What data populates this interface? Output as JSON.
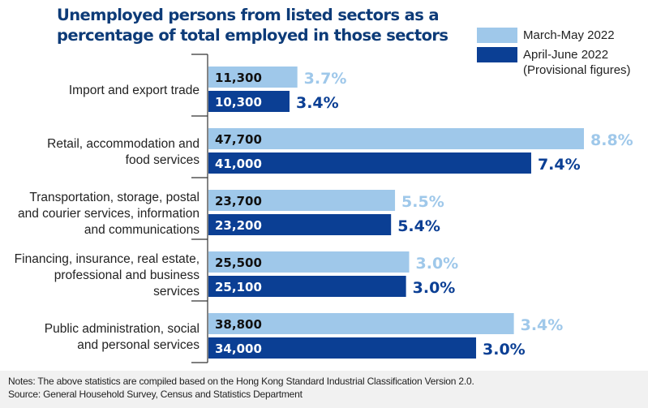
{
  "chart_data": {
    "type": "bar",
    "orientation": "horizontal",
    "title": "Unemployed persons from listed sectors as a percentage of total employed in those sectors",
    "xlabel": "",
    "ylabel": "",
    "xlim": [
      0,
      47700
    ],
    "grid": false,
    "legend_position": "top-right",
    "categories": [
      [
        "Import and export trade"
      ],
      [
        "Retail, accommodation and",
        "food services"
      ],
      [
        "Transportation, storage, postal",
        "and courier services, information",
        "and communications"
      ],
      [
        "Financing, insurance, real estate,",
        "professional and business",
        "services"
      ],
      [
        "Public administration, social",
        "and personal services"
      ]
    ],
    "series": [
      {
        "name": "March-May 2022",
        "color": "#9fc8ea",
        "value_label_color": "#111111",
        "pct_label_color": "#9fc8ea",
        "values": [
          11300,
          47700,
          23700,
          25500,
          38800
        ],
        "value_labels": [
          "11,300",
          "47,700",
          "23,700",
          "25,500",
          "38,800"
        ],
        "percentages": [
          "3.7%",
          "8.8%",
          "5.5%",
          "3.0%",
          "3.4%"
        ]
      },
      {
        "name": "April-June 2022 (Provisional figures)",
        "color": "#0b3f94",
        "value_label_color": "#ffffff",
        "pct_label_color": "#0b3f94",
        "values": [
          10300,
          41000,
          23200,
          25100,
          34000
        ],
        "value_labels": [
          "10,300",
          "41,000",
          "23,200",
          "25,100",
          "34,000"
        ],
        "percentages": [
          "3.4%",
          "7.4%",
          "5.4%",
          "3.0%",
          "3.0%"
        ]
      }
    ]
  },
  "header": {
    "title_line1": "Unemployed persons from listed sectors as a",
    "title_line2": "percentage of total employed in those sectors"
  },
  "legend": {
    "items": [
      {
        "label_lines": [
          "March-May 2022"
        ],
        "color": "#9fc8ea"
      },
      {
        "label_lines": [
          "April-June 2022",
          "(Provisional figures)"
        ],
        "color": "#0b3f94"
      }
    ]
  },
  "footer": {
    "notes": "Notes: The above statistics are compiled based on the Hong Kong Standard Industrial Classification Version 2.0.",
    "source": "Source: General Household Survey, Census and Statistics Department"
  }
}
